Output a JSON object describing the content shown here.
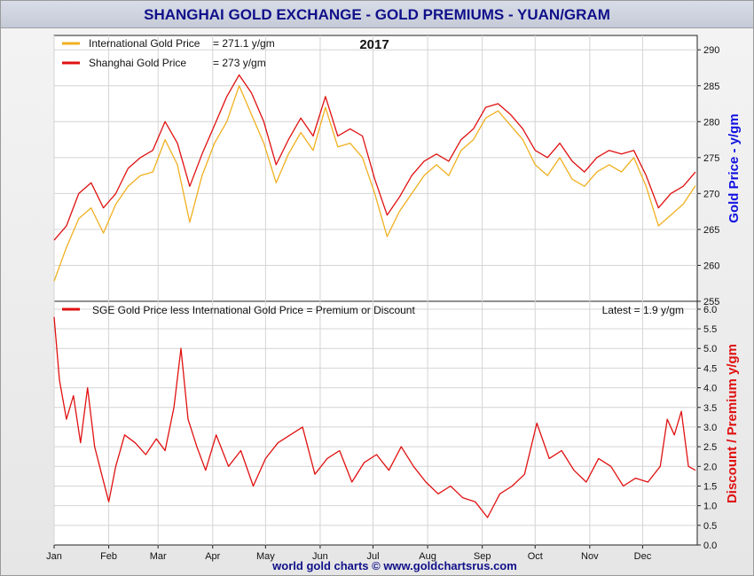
{
  "title": "SHANGHAI GOLD EXCHANGE - GOLD PREMIUMS - YUAN/GRAM",
  "footer": "world gold charts © www.goldchartsrus.com",
  "year_label": "2017",
  "colors": {
    "international": "#f0b020",
    "shanghai": "#e01010",
    "premium": "#e01010",
    "title_text": "#10108a",
    "price_axis_label": "#1010e0",
    "premium_axis_label": "#e01010",
    "footer_text": "#10108a"
  },
  "top_panel": {
    "legend": [
      {
        "label": "International Gold Price",
        "value": "= 271.1 y/gm",
        "color_key": "international"
      },
      {
        "label": "Shanghai Gold Price",
        "value": "= 273 y/gm",
        "color_key": "shanghai"
      }
    ],
    "y_axis_label": "Gold Price - y/gm"
  },
  "bottom_panel": {
    "legend_label": "SGE Gold Price less International Gold Price = Premium or Discount",
    "latest": "Latest = 1.9 y/gm",
    "y_axis_label": "Discount / Premium y/gm"
  },
  "chart_data": [
    {
      "type": "line",
      "title": "2017",
      "ylabel": "Gold Price - y/gm",
      "ylim": [
        255,
        292
      ],
      "yticks": [
        255,
        260,
        265,
        270,
        275,
        280,
        285,
        290
      ],
      "grid": true,
      "legend_position": "top-left",
      "x_months": [
        "Jan",
        "Feb",
        "Mar",
        "Apr",
        "May",
        "Jun",
        "Jul",
        "Aug",
        "Sep",
        "Oct",
        "Nov",
        "Dec"
      ],
      "x": [
        "Jan-01",
        "Jan-08",
        "Jan-15",
        "Jan-22",
        "Jan-29",
        "Feb-05",
        "Feb-12",
        "Feb-19",
        "Feb-26",
        "Mar-05",
        "Mar-12",
        "Mar-19",
        "Mar-26",
        "Apr-02",
        "Apr-09",
        "Apr-16",
        "Apr-23",
        "Apr-30",
        "May-07",
        "May-14",
        "May-21",
        "May-28",
        "Jun-04",
        "Jun-11",
        "Jun-18",
        "Jun-25",
        "Jul-02",
        "Jul-09",
        "Jul-16",
        "Jul-23",
        "Jul-30",
        "Aug-06",
        "Aug-13",
        "Aug-20",
        "Aug-27",
        "Sep-03",
        "Sep-10",
        "Sep-17",
        "Sep-24",
        "Oct-01",
        "Oct-08",
        "Oct-15",
        "Oct-22",
        "Oct-29",
        "Nov-05",
        "Nov-12",
        "Nov-19",
        "Nov-26",
        "Dec-03",
        "Dec-10",
        "Dec-17",
        "Dec-24",
        "Dec-31"
      ],
      "series": [
        {
          "name": "International Gold Price",
          "values": [
            257.8,
            262.5,
            266.5,
            268.0,
            264.5,
            268.5,
            271.0,
            272.5,
            273.0,
            277.5,
            274.0,
            266.0,
            272.5,
            277.0,
            280.0,
            285.0,
            281.0,
            277.0,
            271.5,
            275.5,
            278.5,
            276.0,
            282.0,
            276.5,
            277.0,
            275.0,
            270.0,
            264.0,
            267.5,
            270.0,
            272.5,
            274.0,
            272.5,
            276.0,
            277.5,
            280.5,
            281.5,
            279.5,
            277.5,
            274.0,
            272.5,
            275.0,
            272.0,
            271.0,
            273.0,
            274.0,
            273.0,
            275.0,
            271.0,
            265.5,
            267.0,
            268.5,
            271.1
          ]
        },
        {
          "name": "Shanghai Gold Price",
          "values": [
            263.5,
            265.5,
            270.0,
            271.5,
            268.0,
            270.0,
            273.5,
            275.0,
            276.0,
            280.0,
            277.0,
            271.0,
            275.5,
            279.5,
            283.5,
            286.5,
            284.0,
            280.0,
            274.0,
            277.5,
            280.5,
            278.0,
            283.5,
            278.0,
            279.0,
            278.0,
            272.0,
            267.0,
            269.5,
            272.5,
            274.5,
            275.5,
            274.5,
            277.5,
            279.0,
            282.0,
            282.5,
            281.0,
            279.0,
            276.0,
            275.0,
            277.0,
            274.5,
            273.0,
            275.0,
            276.0,
            275.5,
            276.0,
            272.5,
            268.0,
            270.0,
            271.0,
            273.0
          ]
        }
      ]
    },
    {
      "type": "line",
      "ylabel": "Discount / Premium y/gm",
      "ylim": [
        0,
        6.2
      ],
      "yticks": [
        0.0,
        0.5,
        1.0,
        1.5,
        2.0,
        2.5,
        3.0,
        3.5,
        4.0,
        4.5,
        5.0,
        5.5,
        6.0
      ],
      "grid": true,
      "legend_position": "top-left",
      "x_months": [
        "Jan",
        "Feb",
        "Mar",
        "Apr",
        "May",
        "Jun",
        "Jul",
        "Aug",
        "Sep",
        "Oct",
        "Nov",
        "Dec"
      ],
      "x": [
        "Jan-01",
        "Jan-04",
        "Jan-08",
        "Jan-12",
        "Jan-16",
        "Jan-20",
        "Jan-24",
        "Jan-28",
        "Feb-01",
        "Feb-05",
        "Feb-10",
        "Feb-16",
        "Feb-22",
        "Feb-28",
        "Mar-05",
        "Mar-10",
        "Mar-14",
        "Mar-18",
        "Mar-23",
        "Mar-28",
        "Apr-03",
        "Apr-10",
        "Apr-17",
        "Apr-24",
        "May-01",
        "May-08",
        "May-15",
        "May-22",
        "May-29",
        "Jun-05",
        "Jun-12",
        "Jun-19",
        "Jun-26",
        "Jul-03",
        "Jul-10",
        "Jul-17",
        "Jul-24",
        "Jul-31",
        "Aug-07",
        "Aug-14",
        "Aug-21",
        "Aug-28",
        "Sep-04",
        "Sep-11",
        "Sep-18",
        "Sep-25",
        "Oct-02",
        "Oct-09",
        "Oct-16",
        "Oct-23",
        "Oct-30",
        "Nov-06",
        "Nov-13",
        "Nov-20",
        "Nov-27",
        "Dec-04",
        "Dec-11",
        "Dec-15",
        "Dec-19",
        "Dec-23",
        "Dec-27",
        "Dec-31"
      ],
      "series": [
        {
          "name": "SGE Gold Price less International Gold Price = Premium or Discount",
          "values": [
            5.8,
            4.2,
            3.2,
            3.8,
            2.6,
            4.0,
            2.5,
            1.8,
            1.1,
            2.0,
            2.8,
            2.6,
            2.3,
            2.7,
            2.4,
            3.5,
            5.0,
            3.2,
            2.5,
            1.9,
            2.8,
            2.0,
            2.4,
            1.5,
            2.2,
            2.6,
            2.8,
            3.0,
            1.8,
            2.2,
            2.4,
            1.6,
            2.1,
            2.3,
            1.9,
            2.5,
            2.0,
            1.6,
            1.3,
            1.5,
            1.2,
            1.1,
            0.7,
            1.3,
            1.5,
            1.8,
            3.1,
            2.2,
            2.4,
            1.9,
            1.6,
            2.2,
            2.0,
            1.5,
            1.7,
            1.6,
            2.0,
            3.2,
            2.8,
            3.4,
            2.0,
            1.9
          ]
        }
      ]
    }
  ]
}
